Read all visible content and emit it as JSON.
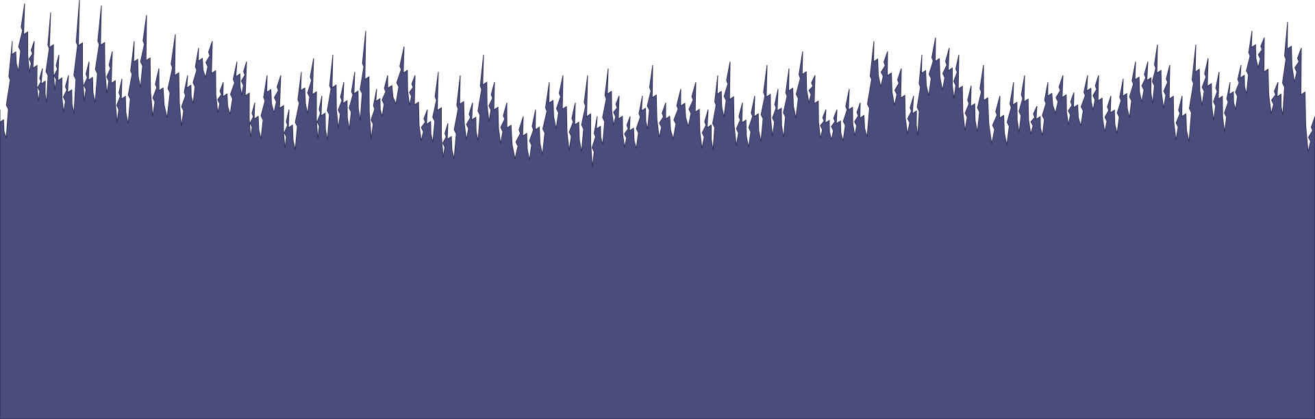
{
  "scene": {
    "background_color": "#ffffff",
    "forest_color": "#4a4d7c",
    "outline_color": "#2e3056",
    "icon": "pine-forest-silhouette"
  }
}
